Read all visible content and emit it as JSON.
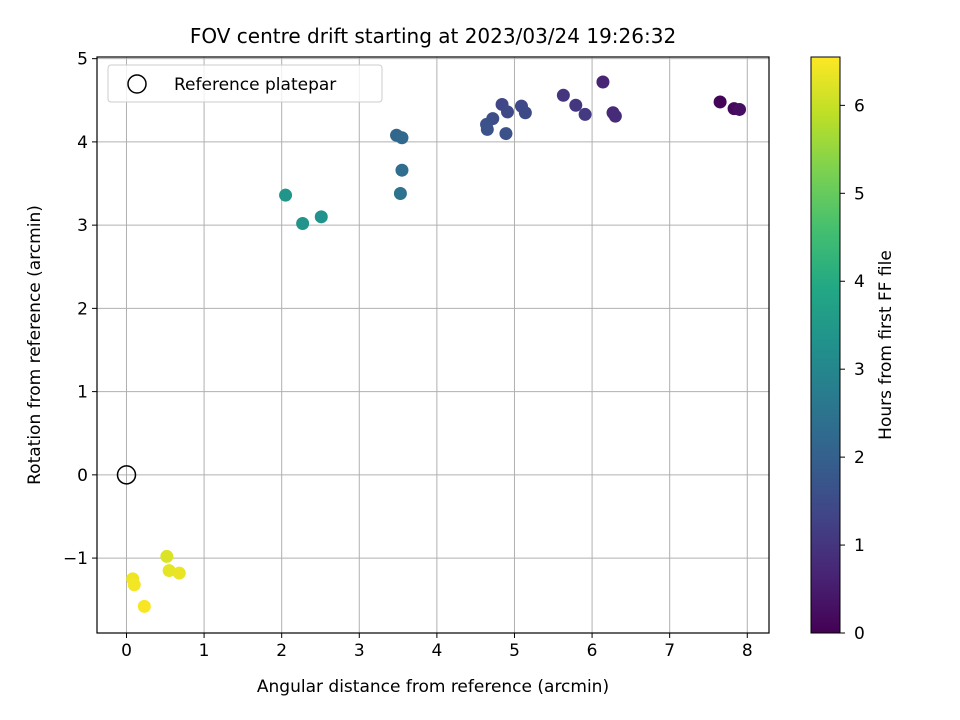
{
  "chart_data": {
    "type": "scatter",
    "title": "FOV centre drift starting at 2023/03/24 19:26:32",
    "xlabel": "Angular distance from reference (arcmin)",
    "ylabel": "Rotation from reference (arcmin)",
    "xlim": [
      -0.38,
      8.28
    ],
    "ylim": [
      -1.9,
      5.02
    ],
    "xticks": [
      0,
      1,
      2,
      3,
      4,
      5,
      6,
      7,
      8
    ],
    "xtick_labels": [
      "0",
      "1",
      "2",
      "3",
      "4",
      "5",
      "6",
      "7",
      "8"
    ],
    "yticks": [
      -1,
      0,
      1,
      2,
      3,
      4,
      5
    ],
    "ytick_labels": [
      "−1",
      "0",
      "1",
      "2",
      "3",
      "4",
      "5"
    ],
    "grid": true,
    "legend": {
      "position": "top-left",
      "entries": [
        "Reference platepar"
      ]
    },
    "reference_point": {
      "label": "Reference platepar",
      "x": 0,
      "y": 0
    },
    "colorbar": {
      "label": "Hours from first FF file",
      "range": [
        0,
        6.55
      ],
      "ticks": [
        0,
        1,
        2,
        3,
        4,
        5,
        6
      ],
      "tick_labels": [
        "0",
        "1",
        "2",
        "3",
        "4",
        "5",
        "6"
      ],
      "colormap": "viridis"
    },
    "points": [
      {
        "x": 7.65,
        "y": 4.48,
        "c": 0.05
      },
      {
        "x": 7.83,
        "y": 4.4,
        "c": 0.15
      },
      {
        "x": 7.9,
        "y": 4.39,
        "c": 0.25
      },
      {
        "x": 6.14,
        "y": 4.72,
        "c": 0.65
      },
      {
        "x": 6.27,
        "y": 4.35,
        "c": 0.75
      },
      {
        "x": 6.3,
        "y": 4.31,
        "c": 0.8
      },
      {
        "x": 5.63,
        "y": 4.56,
        "c": 1.0
      },
      {
        "x": 5.79,
        "y": 4.44,
        "c": 1.05
      },
      {
        "x": 5.91,
        "y": 4.33,
        "c": 1.1
      },
      {
        "x": 4.84,
        "y": 4.45,
        "c": 1.35
      },
      {
        "x": 5.09,
        "y": 4.43,
        "c": 1.4
      },
      {
        "x": 4.91,
        "y": 4.36,
        "c": 1.45
      },
      {
        "x": 5.14,
        "y": 4.35,
        "c": 1.45
      },
      {
        "x": 4.72,
        "y": 4.28,
        "c": 1.55
      },
      {
        "x": 4.64,
        "y": 4.21,
        "c": 1.6
      },
      {
        "x": 4.65,
        "y": 4.15,
        "c": 1.65
      },
      {
        "x": 4.89,
        "y": 4.1,
        "c": 1.6
      },
      {
        "x": 3.48,
        "y": 4.08,
        "c": 2.15
      },
      {
        "x": 3.55,
        "y": 4.05,
        "c": 2.2
      },
      {
        "x": 3.55,
        "y": 3.66,
        "c": 2.35
      },
      {
        "x": 3.53,
        "y": 3.38,
        "c": 2.45
      },
      {
        "x": 2.51,
        "y": 3.1,
        "c": 3.3
      },
      {
        "x": 2.27,
        "y": 3.02,
        "c": 3.35
      },
      {
        "x": 2.05,
        "y": 3.36,
        "c": 3.4
      },
      {
        "x": 0.52,
        "y": -0.98,
        "c": 6.2
      },
      {
        "x": 0.55,
        "y": -1.15,
        "c": 6.3
      },
      {
        "x": 0.68,
        "y": -1.18,
        "c": 6.35
      },
      {
        "x": 0.08,
        "y": -1.25,
        "c": 6.4
      },
      {
        "x": 0.1,
        "y": -1.32,
        "c": 6.45
      },
      {
        "x": 0.23,
        "y": -1.58,
        "c": 6.5
      }
    ]
  }
}
